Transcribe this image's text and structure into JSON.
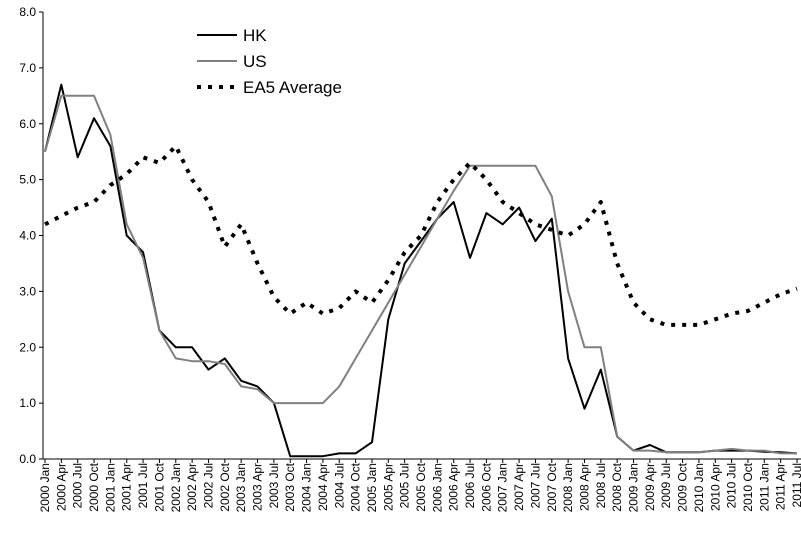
{
  "chart_data": {
    "type": "line",
    "categories": [
      "2000 Jan",
      "2000 Apr",
      "2000 Jul",
      "2000 Oct",
      "2001 Jan",
      "2001 Apr",
      "2001 Jul",
      "2001 Oct",
      "2002 Jan",
      "2002 Apr",
      "2002 Jul",
      "2002 Oct",
      "2003 Jan",
      "2003 Apr",
      "2003 Jul",
      "2003 Oct",
      "2004 Jan",
      "2004 Apr",
      "2004 Jul",
      "2004 Oct",
      "2005 Jan",
      "2005 Apr",
      "2005 Jul",
      "2005 Oct",
      "2006 Jan",
      "2006 Apr",
      "2006 Jul",
      "2006 Oct",
      "2007 Jan",
      "2007 Apr",
      "2007 Jul",
      "2007 Oct",
      "2008 Jan",
      "2008 Apr",
      "2008 Jul",
      "2008 Oct",
      "2009 Jan",
      "2009 Apr",
      "2009 Jul",
      "2009 Oct",
      "2010 Jan",
      "2010 Apr",
      "2010 Jul",
      "2010 Oct",
      "2011 Jan",
      "2011 Apr",
      "2011 Jul"
    ],
    "series": [
      {
        "name": "HK",
        "color": "#000000",
        "dash": "solid",
        "values": [
          5.5,
          6.7,
          5.4,
          6.1,
          5.6,
          4.0,
          3.7,
          2.3,
          2.0,
          2.0,
          1.6,
          1.8,
          1.4,
          1.3,
          1.0,
          0.05,
          0.05,
          0.05,
          0.1,
          0.1,
          0.3,
          2.5,
          3.5,
          3.9,
          4.3,
          4.6,
          3.6,
          4.4,
          4.2,
          4.5,
          3.9,
          4.3,
          1.8,
          0.9,
          1.6,
          0.4,
          0.15,
          0.25,
          0.12,
          0.12,
          0.12,
          0.15,
          0.15,
          0.15,
          0.13,
          0.12,
          0.1
        ]
      },
      {
        "name": "US",
        "color": "#808080",
        "dash": "solid",
        "values": [
          5.5,
          6.5,
          6.5,
          6.5,
          5.8,
          4.2,
          3.6,
          2.3,
          1.8,
          1.75,
          1.75,
          1.7,
          1.3,
          1.25,
          1.0,
          1.0,
          1.0,
          1.0,
          1.3,
          1.8,
          2.3,
          2.8,
          3.3,
          3.8,
          4.3,
          4.8,
          5.25,
          5.25,
          5.25,
          5.25,
          5.25,
          4.7,
          3.0,
          2.0,
          2.0,
          0.4,
          0.15,
          0.15,
          0.12,
          0.12,
          0.12,
          0.15,
          0.18,
          0.15,
          0.15,
          0.1,
          0.1
        ]
      },
      {
        "name": "EA5 Average",
        "color": "#000000",
        "dash": "dotted",
        "values": [
          4.2,
          4.35,
          4.5,
          4.6,
          4.9,
          5.1,
          5.4,
          5.3,
          5.6,
          5.0,
          4.6,
          3.8,
          4.2,
          3.5,
          2.9,
          2.6,
          2.8,
          2.6,
          2.7,
          3.0,
          2.8,
          3.2,
          3.7,
          4.0,
          4.6,
          5.0,
          5.3,
          5.0,
          4.6,
          4.4,
          4.2,
          4.1,
          4.0,
          4.2,
          4.6,
          3.5,
          2.8,
          2.5,
          2.4,
          2.4,
          2.4,
          2.5,
          2.6,
          2.65,
          2.8,
          2.95,
          3.05
        ]
      }
    ],
    "ylim": [
      0,
      8
    ],
    "yticks": [
      {
        "value": 0,
        "label": "0.0"
      },
      {
        "value": 1,
        "label": "1.0"
      },
      {
        "value": 2,
        "label": "2.0"
      },
      {
        "value": 3,
        "label": "3.0"
      },
      {
        "value": 4,
        "label": "4.0"
      },
      {
        "value": 5,
        "label": "5.0"
      },
      {
        "value": 6,
        "label": "6.0"
      },
      {
        "value": 7,
        "label": "7.0"
      },
      {
        "value": 8,
        "label": "8.0"
      }
    ],
    "grid": false,
    "legend": "top"
  }
}
